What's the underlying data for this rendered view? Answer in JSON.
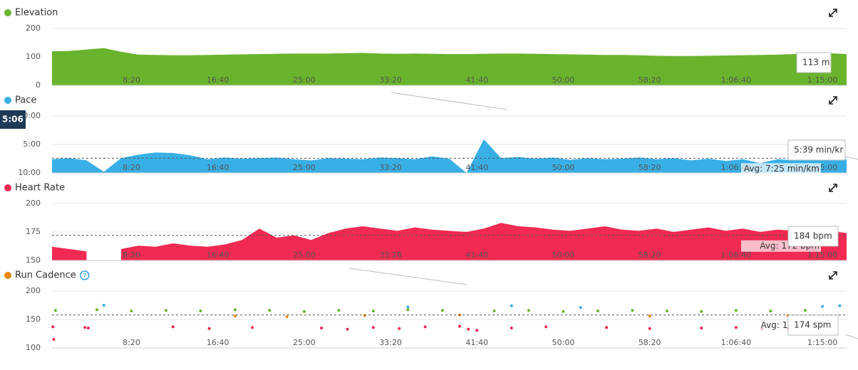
{
  "chart_data": [
    {
      "type": "area",
      "title": "Elevation",
      "color": "#6ab42d",
      "x": [
        40,
        140,
        240,
        340,
        440,
        540,
        640,
        740,
        840,
        940,
        1040,
        1140,
        1240,
        1340,
        1440,
        1540,
        1640,
        1740,
        1840,
        1940,
        2040,
        2140,
        2240,
        2340,
        2440,
        2540,
        2640,
        2740,
        2840,
        2940,
        3040,
        3140,
        3240,
        3340,
        3440,
        3540,
        3640,
        3740,
        3840,
        3940,
        4040,
        4140,
        4240,
        4340,
        4440,
        4540,
        4640
      ],
      "values": [
        120,
        121,
        126,
        131,
        118,
        108,
        107,
        106,
        106,
        107,
        108,
        109,
        110,
        111,
        112,
        112,
        112,
        113,
        114,
        112,
        111,
        112,
        111,
        110,
        110,
        111,
        112,
        112,
        111,
        110,
        109,
        108,
        107,
        107,
        106,
        104,
        103,
        103,
        104,
        105,
        106,
        107,
        108,
        110,
        112,
        113,
        110
      ],
      "xlim": [
        40,
        4640
      ],
      "ylim": [
        0,
        200
      ],
      "yticks": [
        0,
        100,
        200
      ],
      "xticks": [
        {
          "value": 500,
          "label": "8:20"
        },
        {
          "value": 1000,
          "label": "16:40"
        },
        {
          "value": 1500,
          "label": "25:00"
        },
        {
          "value": 2000,
          "label": "33:20"
        },
        {
          "value": 2500,
          "label": "41:40"
        },
        {
          "value": 3000,
          "label": "50:00"
        },
        {
          "value": 3500,
          "label": "58:20"
        },
        {
          "value": 4000,
          "label": "1:06:40"
        },
        {
          "value": 4500,
          "label": "1:15:00"
        }
      ],
      "tooltip": "113 m"
    },
    {
      "type": "area",
      "title": "Pace",
      "color": "#38b0e6",
      "x": [
        40,
        140,
        240,
        340,
        440,
        540,
        640,
        740,
        840,
        940,
        1040,
        1140,
        1240,
        1340,
        1440,
        1540,
        1640,
        1740,
        1840,
        1940,
        2040,
        2140,
        2240,
        2340,
        2440,
        2540,
        2640,
        2740,
        2840,
        2940,
        3040,
        3140,
        3240,
        3340,
        3440,
        3540,
        3640,
        3740,
        3840,
        3940,
        4040,
        4140,
        4240,
        4340,
        4440,
        4540,
        4640
      ],
      "values": [
        7.6,
        7.4,
        7.8,
        9.8,
        7.4,
        6.8,
        6.4,
        6.5,
        6.9,
        7.6,
        7.3,
        7.5,
        7.4,
        7.3,
        7.6,
        7.8,
        7.4,
        7.5,
        7.6,
        7.3,
        7.4,
        7.6,
        7.1,
        7.5,
        10,
        4.1,
        7.4,
        7.2,
        7.5,
        7.3,
        7.7,
        7.4,
        7.6,
        7.5,
        7.3,
        7.6,
        7.4,
        7.8,
        7.5,
        7.9,
        7.6,
        8.3,
        7.6,
        7.8,
        7.5,
        7.4,
        7.6
      ],
      "xlim": [
        40,
        4640
      ],
      "ylim": [
        10,
        0
      ],
      "yticks": [
        {
          "value": 0,
          "label": "0:00"
        },
        {
          "value": 5,
          "label": "5:00"
        },
        {
          "value": 10,
          "label": "10:00"
        }
      ],
      "xticks": [
        {
          "value": 500,
          "label": "8:20"
        },
        {
          "value": 1000,
          "label": "16:40"
        },
        {
          "value": 1500,
          "label": "25:00"
        },
        {
          "value": 2000,
          "label": "33:20"
        },
        {
          "value": 2500,
          "label": "41:40"
        },
        {
          "value": 3000,
          "label": "50:00"
        },
        {
          "value": 3500,
          "label": "58:20"
        },
        {
          "value": 4000,
          "label": "1:06:40"
        },
        {
          "value": 4500,
          "label": "1:15:00"
        }
      ],
      "avg": 7.4167,
      "avg_label": "Avg: 7:25 min/km",
      "tooltip": "5:39 min/kr",
      "badge": "5:06"
    },
    {
      "type": "area",
      "title": "Heart Rate",
      "color": "#f02a52",
      "x": [
        40,
        140,
        240,
        340,
        440,
        540,
        640,
        740,
        840,
        940,
        1040,
        1140,
        1240,
        1340,
        1440,
        1540,
        1640,
        1740,
        1840,
        1940,
        2040,
        2140,
        2240,
        2340,
        2440,
        2540,
        2640,
        2740,
        2840,
        2940,
        3040,
        3140,
        3240,
        3340,
        3440,
        3540,
        3640,
        3740,
        3840,
        3940,
        4040,
        4140,
        4240,
        4340,
        4440,
        4540,
        4640
      ],
      "values": [
        162,
        160,
        158,
        null,
        160,
        163,
        162,
        165,
        163,
        162,
        164,
        168,
        178,
        170,
        172,
        168,
        174,
        178,
        180,
        178,
        176,
        179,
        177,
        176,
        175,
        178,
        183,
        180,
        179,
        177,
        176,
        178,
        180,
        177,
        176,
        178,
        175,
        177,
        179,
        176,
        178,
        175,
        177,
        176,
        175,
        176,
        174
      ],
      "xlim": [
        40,
        4640
      ],
      "ylim": [
        150,
        200
      ],
      "yticks": [
        150,
        175,
        200
      ],
      "xticks": [
        {
          "value": 500,
          "label": "8:20"
        },
        {
          "value": 1000,
          "label": "16:40"
        },
        {
          "value": 1500,
          "label": "25:00"
        },
        {
          "value": 2000,
          "label": "33:20"
        },
        {
          "value": 2500,
          "label": "41:40"
        },
        {
          "value": 3000,
          "label": "50:00"
        },
        {
          "value": 3500,
          "label": "58:20"
        },
        {
          "value": 4000,
          "label": "1:06:40"
        },
        {
          "value": 4500,
          "label": "1:15:00"
        }
      ],
      "avg": 172,
      "avg_label": "Avg: 172 bpm",
      "tooltip": "184 bpm"
    },
    {
      "type": "scatter",
      "title": "Run Cadence",
      "color": "#e8860c",
      "series": [
        {
          "color": "#6ab42d",
          "x": [
            60,
            300,
            500,
            700,
            900,
            1100,
            1300,
            1500,
            1700,
            1900,
            2100,
            2300,
            2600,
            2800,
            3000,
            3200,
            3400,
            3600,
            3800,
            4000,
            4200,
            4400
          ],
          "values": [
            166,
            167,
            165,
            166,
            165,
            167,
            166,
            164,
            166,
            165,
            167,
            166,
            165,
            166,
            164,
            165,
            166,
            165,
            164,
            166,
            165,
            166
          ]
        },
        {
          "color": "#38b0e6",
          "x": [
            340,
            2100,
            2700,
            3100,
            4500,
            4600
          ],
          "values": [
            175,
            172,
            174,
            171,
            173,
            174
          ]
        },
        {
          "color": "#e8274e",
          "x": [
            45,
            50,
            230,
            250,
            740,
            950,
            1200,
            1600,
            1750,
            1900,
            2050,
            2200,
            2400,
            2450,
            2500,
            2700,
            2900,
            3250,
            3500,
            3800,
            4000,
            4150,
            4300
          ],
          "values": [
            137,
            115,
            136,
            135,
            137,
            134,
            136,
            135,
            133,
            136,
            134,
            137,
            138,
            133,
            131,
            135,
            137,
            136,
            134,
            135,
            136,
            133,
            135
          ]
        },
        {
          "color": "#f08a1c",
          "x": [
            1100,
            1400,
            1850,
            2400,
            3500,
            4300
          ],
          "values": [
            156,
            155,
            157,
            158,
            156,
            157
          ]
        }
      ],
      "xlim": [
        40,
        4640
      ],
      "ylim": [
        100,
        200
      ],
      "yticks": [
        100,
        150,
        200
      ],
      "xticks": [
        {
          "value": 500,
          "label": "8:20"
        },
        {
          "value": 1000,
          "label": "16:40"
        },
        {
          "value": 1500,
          "label": "25:00"
        },
        {
          "value": 2000,
          "label": "33:20"
        },
        {
          "value": 2500,
          "label": "41:40"
        },
        {
          "value": 3000,
          "label": "50:00"
        },
        {
          "value": 3500,
          "label": "58:20"
        },
        {
          "value": 4000,
          "label": "1:06:40"
        },
        {
          "value": 4500,
          "label": "1:15:00"
        }
      ],
      "avg": 158,
      "avg_label": "Avg: 158 spm",
      "tooltip": "174 spm"
    }
  ]
}
